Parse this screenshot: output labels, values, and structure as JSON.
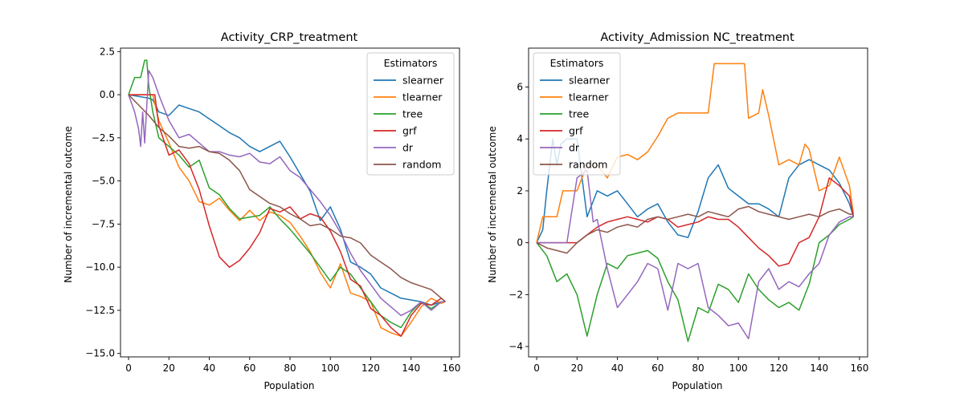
{
  "chart_data": [
    {
      "type": "line",
      "title": "Activity_CRP_treatment",
      "xlabel": "Population",
      "ylabel": "Number of incremental outcome",
      "xlim": [
        -4,
        164
      ],
      "ylim": [
        -15.2,
        2.7
      ],
      "xticks": [
        0,
        20,
        40,
        60,
        80,
        100,
        120,
        140,
        160
      ],
      "yticks": [
        -15.0,
        -12.5,
        -10.0,
        -7.5,
        -5.0,
        -2.5,
        0.0,
        2.5
      ],
      "ytick_labels": [
        "−15.0",
        "−12.5",
        "−10.0",
        "−7.5",
        "−5.0",
        "−2.5",
        "0.0",
        "2.5"
      ],
      "grid": false,
      "legend": {
        "title": "Estimators",
        "placement": "top-right"
      },
      "series": [
        {
          "name": "slearner",
          "color": "#1f77b4",
          "x": [
            0,
            10,
            12,
            15,
            20,
            25,
            30,
            35,
            40,
            45,
            50,
            55,
            60,
            65,
            70,
            75,
            80,
            85,
            90,
            95,
            100,
            105,
            110,
            115,
            120,
            125,
            130,
            135,
            140,
            145,
            150,
            155,
            157
          ],
          "y": [
            0,
            -0.2,
            -0.3,
            -1.0,
            -1.2,
            -0.6,
            -0.8,
            -1.0,
            -1.4,
            -1.8,
            -2.2,
            -2.5,
            -3.0,
            -3.3,
            -3.0,
            -2.7,
            -3.6,
            -4.6,
            -5.6,
            -7.3,
            -6.5,
            -7.8,
            -9.7,
            -10.0,
            -10.4,
            -11.2,
            -11.5,
            -11.8,
            -11.9,
            -12.0,
            -12.2,
            -12.0,
            -12.0
          ]
        },
        {
          "name": "tlearner",
          "color": "#ff7f0e",
          "x": [
            0,
            5,
            10,
            12,
            15,
            20,
            25,
            30,
            35,
            40,
            45,
            50,
            55,
            60,
            65,
            70,
            75,
            80,
            85,
            90,
            95,
            100,
            105,
            110,
            115,
            120,
            125,
            130,
            135,
            140,
            145,
            150,
            155,
            157
          ],
          "y": [
            0,
            0,
            0,
            0,
            -1.5,
            -2.8,
            -4.2,
            -5.0,
            -6.2,
            -6.4,
            -6.0,
            -6.7,
            -7.3,
            -6.7,
            -7.3,
            -6.8,
            -7.0,
            -7.4,
            -8.2,
            -9.1,
            -10.3,
            -11.2,
            -9.8,
            -11.5,
            -11.7,
            -12.0,
            -13.5,
            -13.8,
            -14.0,
            -13.2,
            -12.3,
            -11.8,
            -12.1,
            -12.0
          ]
        },
        {
          "name": "tree",
          "color": "#2ca02c",
          "x": [
            0,
            3,
            6,
            8,
            9,
            10,
            12,
            15,
            20,
            25,
            30,
            35,
            40,
            45,
            50,
            55,
            60,
            65,
            70,
            75,
            80,
            85,
            90,
            95,
            100,
            105,
            110,
            115,
            120,
            125,
            130,
            135,
            140,
            145,
            150,
            155,
            157
          ],
          "y": [
            0,
            1.0,
            1.0,
            2.0,
            2.0,
            0.5,
            -1.0,
            -2.5,
            -3.0,
            -3.5,
            -4.2,
            -3.8,
            -5.4,
            -5.8,
            -6.6,
            -7.2,
            -7.1,
            -7.0,
            -6.5,
            -7.2,
            -7.8,
            -8.5,
            -9.2,
            -10.0,
            -10.8,
            -10.0,
            -10.4,
            -11.2,
            -12.0,
            -12.8,
            -13.2,
            -13.5,
            -12.6,
            -12.0,
            -12.4,
            -12.0,
            -12.0
          ]
        },
        {
          "name": "grf",
          "color": "#d62728",
          "x": [
            0,
            5,
            10,
            13,
            15,
            20,
            25,
            30,
            35,
            40,
            45,
            50,
            55,
            60,
            65,
            70,
            75,
            80,
            85,
            90,
            95,
            100,
            105,
            110,
            115,
            120,
            125,
            130,
            135,
            140,
            145,
            150,
            155,
            157
          ],
          "y": [
            0,
            0,
            0,
            0,
            -1.8,
            -3.5,
            -3.2,
            -4.0,
            -5.5,
            -7.6,
            -9.4,
            -10.0,
            -9.6,
            -8.9,
            -8.0,
            -6.6,
            -6.8,
            -6.5,
            -7.2,
            -6.9,
            -7.1,
            -7.9,
            -9.1,
            -10.7,
            -11.1,
            -12.4,
            -12.8,
            -13.5,
            -14.0,
            -12.8,
            -12.1,
            -12.2,
            -11.8,
            -12.0
          ]
        },
        {
          "name": "dr",
          "color": "#9467bd",
          "x": [
            0,
            3,
            5,
            6,
            7,
            8,
            10,
            12,
            15,
            20,
            25,
            30,
            35,
            40,
            45,
            50,
            55,
            60,
            65,
            70,
            75,
            80,
            85,
            90,
            95,
            100,
            105,
            110,
            115,
            120,
            125,
            130,
            135,
            140,
            145,
            150,
            155,
            157
          ],
          "y": [
            0,
            -1.0,
            -2.0,
            -3.0,
            -1.0,
            -2.8,
            1.4,
            1.0,
            0.0,
            -1.5,
            -2.5,
            -2.3,
            -2.8,
            -3.3,
            -3.3,
            -3.5,
            -3.6,
            -3.4,
            -3.9,
            -4.0,
            -3.6,
            -4.4,
            -4.8,
            -5.5,
            -6.2,
            -7.0,
            -8.0,
            -9.2,
            -10.2,
            -11.0,
            -11.8,
            -12.3,
            -12.8,
            -12.5,
            -12.0,
            -12.5,
            -12.0,
            -12.0
          ]
        },
        {
          "name": "random",
          "color": "#8c564b",
          "x": [
            0,
            5,
            10,
            15,
            20,
            25,
            30,
            35,
            40,
            45,
            50,
            55,
            60,
            65,
            70,
            75,
            80,
            85,
            90,
            95,
            100,
            105,
            110,
            115,
            120,
            125,
            130,
            135,
            140,
            145,
            150,
            155,
            157
          ],
          "y": [
            0,
            -0.6,
            -1.2,
            -1.9,
            -2.4,
            -3.0,
            -3.1,
            -3.0,
            -3.3,
            -3.4,
            -3.8,
            -4.4,
            -5.5,
            -5.9,
            -6.3,
            -6.5,
            -6.9,
            -7.2,
            -7.6,
            -7.5,
            -7.8,
            -8.2,
            -8.3,
            -8.6,
            -9.3,
            -9.7,
            -10.1,
            -10.6,
            -10.9,
            -11.1,
            -11.3,
            -11.8,
            -12.0
          ]
        }
      ]
    },
    {
      "type": "line",
      "title": "Activity_Admission NC_treatment",
      "xlabel": "Population",
      "ylabel": "Number of incremental outcome",
      "xlim": [
        -4,
        164
      ],
      "ylim": [
        -4.4,
        7.5
      ],
      "xticks": [
        0,
        20,
        40,
        60,
        80,
        100,
        120,
        140,
        160
      ],
      "yticks": [
        -4,
        -2,
        0,
        2,
        4,
        6
      ],
      "ytick_labels": [
        "−4",
        "−2",
        "0",
        "2",
        "4",
        "6"
      ],
      "grid": false,
      "legend": {
        "title": "Estimators",
        "placement": "top-left"
      },
      "series": [
        {
          "name": "slearner",
          "color": "#1f77b4",
          "x": [
            0,
            3,
            5,
            8,
            10,
            12,
            15,
            18,
            20,
            25,
            28,
            30,
            35,
            40,
            45,
            50,
            55,
            60,
            65,
            70,
            75,
            80,
            85,
            90,
            95,
            100,
            105,
            110,
            115,
            120,
            125,
            130,
            135,
            140,
            145,
            150,
            155,
            157
          ],
          "y": [
            0,
            0.5,
            2.0,
            4.0,
            3.0,
            3.8,
            4.0,
            4.0,
            4.0,
            1.0,
            1.6,
            2.0,
            1.8,
            2.0,
            1.5,
            1.0,
            1.3,
            1.5,
            0.8,
            0.3,
            0.2,
            1.2,
            2.5,
            3.0,
            2.1,
            1.8,
            1.5,
            1.5,
            1.3,
            1.0,
            2.5,
            3.0,
            3.2,
            3.0,
            2.8,
            2.3,
            1.5,
            1.0
          ]
        },
        {
          "name": "tlearner",
          "color": "#ff7f0e",
          "x": [
            0,
            3,
            5,
            10,
            13,
            15,
            20,
            25,
            28,
            30,
            35,
            40,
            45,
            50,
            55,
            60,
            65,
            70,
            75,
            80,
            85,
            88,
            90,
            95,
            100,
            103,
            105,
            110,
            112,
            115,
            120,
            125,
            130,
            133,
            135,
            140,
            145,
            150,
            155,
            157
          ],
          "y": [
            0,
            1.0,
            1.0,
            1.0,
            2.0,
            2.0,
            2.0,
            3.0,
            3.0,
            3.0,
            2.5,
            3.3,
            3.4,
            3.2,
            3.5,
            4.1,
            4.8,
            5.0,
            5.0,
            5.0,
            5.0,
            6.9,
            6.9,
            6.9,
            6.9,
            6.9,
            4.8,
            5.0,
            5.9,
            4.9,
            3.0,
            3.2,
            3.0,
            3.8,
            3.6,
            2.0,
            2.2,
            3.3,
            2.2,
            1.1
          ]
        },
        {
          "name": "tree",
          "color": "#2ca02c",
          "x": [
            0,
            5,
            10,
            15,
            20,
            25,
            30,
            35,
            40,
            45,
            50,
            55,
            60,
            65,
            70,
            75,
            80,
            85,
            90,
            95,
            100,
            105,
            110,
            115,
            120,
            125,
            130,
            135,
            140,
            145,
            150,
            155,
            157
          ],
          "y": [
            0,
            -0.5,
            -1.5,
            -1.2,
            -2.0,
            -3.6,
            -2.0,
            -0.8,
            -1.0,
            -0.5,
            -0.4,
            -0.3,
            -0.6,
            -1.5,
            -2.2,
            -3.8,
            -2.5,
            -2.7,
            -1.6,
            -1.8,
            -2.3,
            -1.2,
            -1.8,
            -2.2,
            -2.5,
            -2.3,
            -2.6,
            -1.6,
            0.0,
            0.3,
            0.7,
            0.9,
            1.0
          ]
        },
        {
          "name": "grf",
          "color": "#d62728",
          "x": [
            0,
            5,
            10,
            15,
            20,
            25,
            30,
            35,
            40,
            45,
            50,
            55,
            60,
            65,
            70,
            75,
            80,
            85,
            90,
            95,
            100,
            105,
            110,
            115,
            120,
            125,
            130,
            135,
            140,
            145,
            150,
            155,
            157
          ],
          "y": [
            0,
            0,
            0,
            0,
            0,
            0.3,
            0.6,
            0.8,
            0.9,
            1.0,
            0.9,
            0.8,
            1.0,
            0.9,
            0.6,
            0.7,
            0.8,
            1.0,
            0.9,
            0.9,
            0.6,
            0.2,
            -0.2,
            -0.5,
            -0.9,
            -0.8,
            0.0,
            0.2,
            1.0,
            2.5,
            2.2,
            1.8,
            1.0
          ]
        },
        {
          "name": "dr",
          "color": "#9467bd",
          "x": [
            0,
            5,
            10,
            15,
            20,
            25,
            28,
            30,
            35,
            40,
            45,
            50,
            55,
            60,
            65,
            70,
            75,
            80,
            85,
            90,
            95,
            100,
            105,
            110,
            115,
            120,
            125,
            130,
            135,
            140,
            145,
            150,
            155,
            157
          ],
          "y": [
            0,
            0,
            0,
            0,
            2.5,
            2.8,
            0.8,
            0.9,
            -1.0,
            -2.5,
            -2.0,
            -1.5,
            -0.8,
            -1.0,
            -2.6,
            -0.8,
            -1.0,
            -0.8,
            -2.5,
            -2.8,
            -3.2,
            -3.1,
            -3.7,
            -1.5,
            -1.0,
            -1.8,
            -1.5,
            -1.7,
            -1.2,
            -0.8,
            0.3,
            0.8,
            1.0,
            1.0
          ]
        },
        {
          "name": "random",
          "color": "#8c564b",
          "x": [
            0,
            5,
            10,
            15,
            20,
            25,
            30,
            35,
            40,
            45,
            50,
            55,
            60,
            65,
            70,
            75,
            80,
            85,
            90,
            95,
            100,
            105,
            110,
            115,
            120,
            125,
            130,
            135,
            140,
            145,
            150,
            155,
            157
          ],
          "y": [
            0,
            -0.2,
            -0.3,
            -0.4,
            0.0,
            0.3,
            0.5,
            0.4,
            0.6,
            0.7,
            0.6,
            0.9,
            1.0,
            0.9,
            1.0,
            1.1,
            1.0,
            1.2,
            1.1,
            1.0,
            1.3,
            1.4,
            1.2,
            1.1,
            1.0,
            0.9,
            1.0,
            1.1,
            1.0,
            1.2,
            1.3,
            1.1,
            1.1
          ]
        }
      ]
    }
  ]
}
